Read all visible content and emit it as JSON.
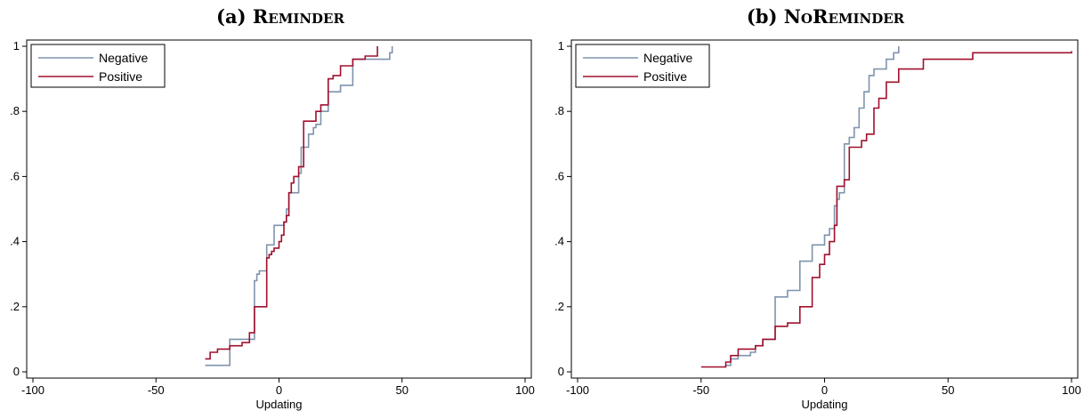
{
  "colors": {
    "negative": "#7f93ad",
    "positive": "#a0102e",
    "frame": "#000000"
  },
  "chart_data": [
    {
      "type": "line",
      "panel_label": "(a)",
      "title": "Reminder",
      "xlabel": "Updating",
      "ylabel": "",
      "xlim": [
        -100,
        100
      ],
      "ylim": [
        0,
        1
      ],
      "x_ticks": [
        "-100",
        "-50",
        "0",
        "50",
        "100"
      ],
      "y_ticks": [
        "0",
        ".2",
        ".4",
        ".6",
        ".8",
        "1"
      ],
      "legend": "top-left",
      "grid": false,
      "step": true,
      "series": [
        {
          "name": "Negative",
          "x": [
            -30,
            -20,
            -10,
            -9,
            -8,
            -5,
            -4,
            -2,
            0,
            2,
            3,
            4,
            8,
            9,
            10,
            12,
            14,
            15,
            17,
            20,
            22,
            25,
            30,
            42,
            45,
            46
          ],
          "y": [
            0.02,
            0.1,
            0.28,
            0.3,
            0.31,
            0.39,
            0.39,
            0.45,
            0.45,
            0.46,
            0.5,
            0.55,
            0.61,
            0.69,
            0.69,
            0.73,
            0.75,
            0.76,
            0.8,
            0.86,
            0.86,
            0.88,
            0.96,
            0.96,
            0.98,
            1.0
          ]
        },
        {
          "name": "Positive",
          "x": [
            -30,
            -28,
            -25,
            -20,
            -15,
            -12,
            -10,
            -5,
            -4,
            -3,
            -2,
            0,
            1,
            2,
            3,
            4,
            5,
            6,
            8,
            10,
            15,
            17,
            20,
            22,
            25,
            30,
            35,
            40
          ],
          "y": [
            0.04,
            0.06,
            0.07,
            0.08,
            0.09,
            0.12,
            0.2,
            0.35,
            0.36,
            0.37,
            0.38,
            0.4,
            0.42,
            0.46,
            0.48,
            0.55,
            0.58,
            0.6,
            0.63,
            0.77,
            0.8,
            0.82,
            0.9,
            0.91,
            0.94,
            0.96,
            0.97,
            1.0
          ]
        }
      ]
    },
    {
      "type": "line",
      "panel_label": "(b)",
      "title": "NoReminder",
      "xlabel": "Updating",
      "ylabel": "",
      "xlim": [
        -100,
        100
      ],
      "ylim": [
        0,
        1
      ],
      "x_ticks": [
        "-100",
        "-50",
        "0",
        "50",
        "100"
      ],
      "y_ticks": [
        "0",
        ".2",
        ".4",
        ".6",
        ".8",
        "1"
      ],
      "legend": "top-left",
      "grid": false,
      "step": true,
      "series": [
        {
          "name": "Negative",
          "x": [
            -40,
            -38,
            -35,
            -30,
            -28,
            -25,
            -20,
            -15,
            -10,
            -5,
            0,
            2,
            4,
            5,
            6,
            8,
            10,
            12,
            14,
            16,
            18,
            20,
            25,
            28,
            30
          ],
          "y": [
            0.02,
            0.04,
            0.05,
            0.06,
            0.08,
            0.1,
            0.23,
            0.25,
            0.34,
            0.39,
            0.42,
            0.44,
            0.51,
            0.53,
            0.55,
            0.7,
            0.72,
            0.75,
            0.81,
            0.86,
            0.91,
            0.93,
            0.96,
            0.98,
            1.0
          ]
        },
        {
          "name": "Positive",
          "x": [
            -50,
            -40,
            -38,
            -35,
            -30,
            -28,
            -25,
            -20,
            -18,
            -15,
            -10,
            -5,
            -2,
            0,
            2,
            4,
            5,
            8,
            10,
            15,
            17,
            20,
            22,
            25,
            30,
            40,
            60,
            100
          ],
          "y": [
            0.015,
            0.03,
            0.05,
            0.07,
            0.07,
            0.08,
            0.1,
            0.14,
            0.14,
            0.15,
            0.2,
            0.29,
            0.33,
            0.36,
            0.4,
            0.45,
            0.57,
            0.59,
            0.69,
            0.71,
            0.73,
            0.81,
            0.84,
            0.89,
            0.93,
            0.96,
            0.98,
            0.985
          ]
        }
      ]
    }
  ]
}
